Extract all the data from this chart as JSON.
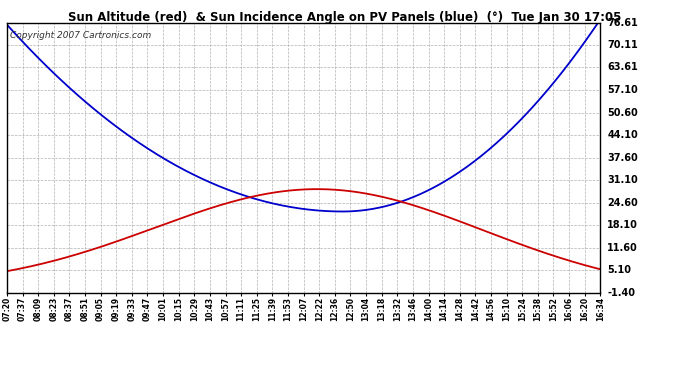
{
  "title": "Sun Altitude (red)  & Sun Incidence Angle on PV Panels (blue)  (°)  Tue Jan 30 17:05",
  "copyright": "Copyright 2007 Cartronics.com",
  "y_ticks": [
    -1.4,
    5.1,
    11.6,
    18.1,
    24.6,
    31.1,
    37.6,
    44.1,
    50.6,
    57.1,
    63.61,
    70.11,
    76.61
  ],
  "ymin": -1.4,
  "ymax": 76.61,
  "x_labels": [
    "07:20",
    "07:37",
    "08:09",
    "08:23",
    "08:37",
    "08:51",
    "09:05",
    "09:19",
    "09:33",
    "09:47",
    "10:01",
    "10:15",
    "10:29",
    "10:43",
    "10:57",
    "11:11",
    "11:25",
    "11:39",
    "11:53",
    "12:07",
    "12:22",
    "12:36",
    "12:50",
    "13:04",
    "13:18",
    "13:32",
    "13:46",
    "14:00",
    "14:14",
    "14:28",
    "14:42",
    "14:56",
    "15:10",
    "15:24",
    "15:38",
    "15:52",
    "16:06",
    "16:20",
    "16:34"
  ],
  "bg_color": "#ffffff",
  "plot_bg_color": "#ffffff",
  "grid_color": "#aaaaaa",
  "red_color": "#cc0000",
  "blue_color": "#0000cc",
  "title_color": "#000000",
  "border_color": "#000000",
  "title_fontsize": 8.5,
  "tick_fontsize": 7.0,
  "copyright_fontsize": 6.5
}
